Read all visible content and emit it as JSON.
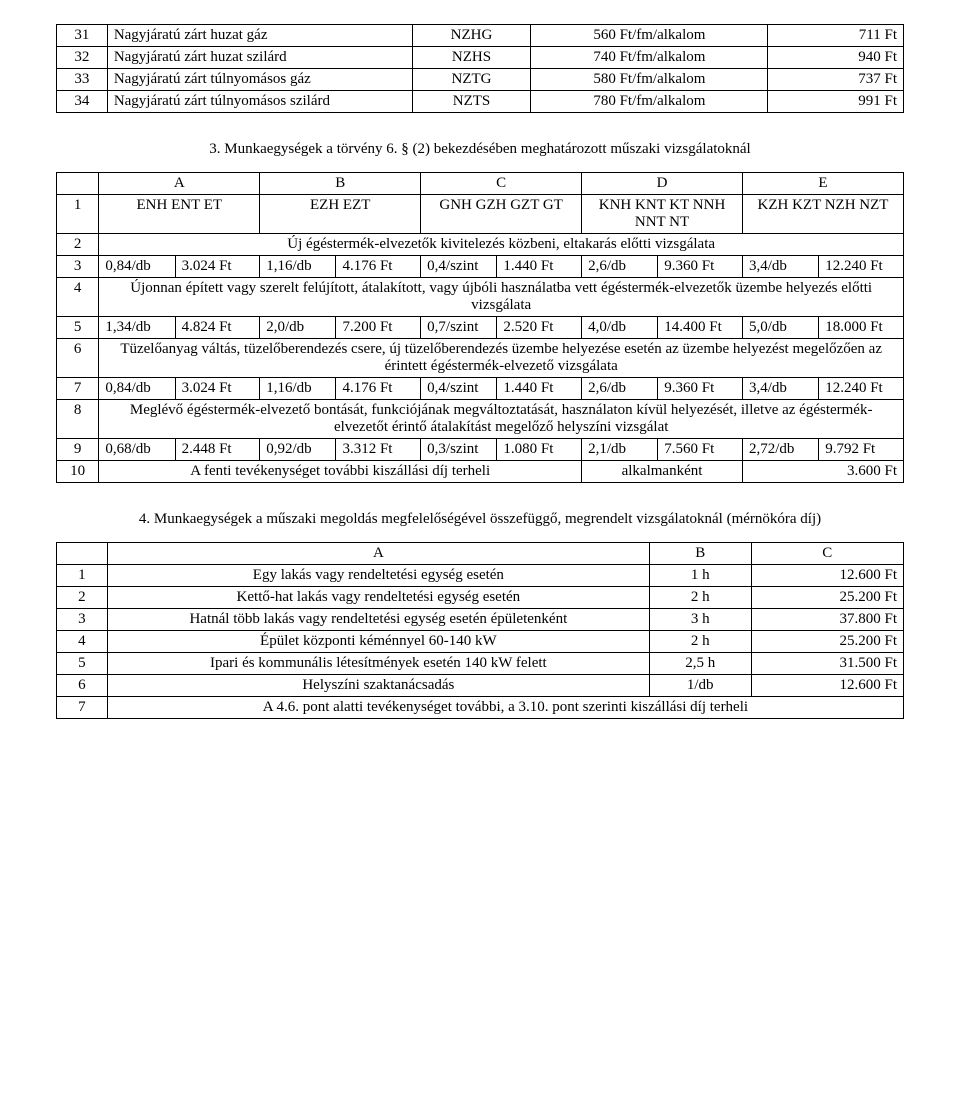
{
  "table1": {
    "cols": [
      "31",
      "32",
      "33",
      "34"
    ],
    "rows": [
      {
        "n": "31",
        "name": "Nagyjáratú zárt huzat gáz",
        "code": "NZHG",
        "rate": "560 Ft/fm/alkalom",
        "price": "711 Ft"
      },
      {
        "n": "32",
        "name": "Nagyjáratú zárt huzat szilárd",
        "code": "NZHS",
        "rate": "740 Ft/fm/alkalom",
        "price": "940 Ft"
      },
      {
        "n": "33",
        "name": "Nagyjáratú zárt túlnyomásos gáz",
        "code": "NZTG",
        "rate": "580 Ft/fm/alkalom",
        "price": "737 Ft"
      },
      {
        "n": "34",
        "name": "Nagyjáratú zárt túlnyomásos szilárd",
        "code": "NZTS",
        "rate": "780 Ft/fm/alkalom",
        "price": "991 Ft"
      }
    ]
  },
  "section3_title": "3. Munkaegységek a törvény 6. § (2) bekezdésében meghatározott műszaki vizsgálatoknál",
  "table2": {
    "header": [
      "",
      "A",
      "B",
      "C",
      "D",
      "E"
    ],
    "row1": {
      "n": "1",
      "a": "ENH ENT ET",
      "b": "EZH EZT",
      "c": "GNH GZH GZT GT",
      "d": "KNH KNT KT NNH NNT NT",
      "e": "KZH KZT NZH NZT"
    },
    "row2": {
      "n": "2",
      "text": "Új égéstermék-elvezetők kivitelezés közbeni, eltakarás előtti vizsgálata"
    },
    "row3": {
      "n": "3",
      "a1": "0,84/db",
      "a2": "3.024 Ft",
      "b1": "1,16/db",
      "b2": "4.176 Ft",
      "c1": "0,4/szint",
      "c2": "1.440 Ft",
      "d1": "2,6/db",
      "d2": "9.360 Ft",
      "e1": "3,4/db",
      "e2": "12.240 Ft"
    },
    "row4": {
      "n": "4",
      "text": "Újonnan épített vagy szerelt felújított, átalakított, vagy újbóli használatba vett égéstermék-elvezetők üzembe helyezés előtti vizsgálata"
    },
    "row5": {
      "n": "5",
      "a1": "1,34/db",
      "a2": "4.824 Ft",
      "b1": "2,0/db",
      "b2": "7.200 Ft",
      "c1": "0,7/szint",
      "c2": "2.520 Ft",
      "d1": "4,0/db",
      "d2": "14.400 Ft",
      "e1": "5,0/db",
      "e2": "18.000 Ft"
    },
    "row6": {
      "n": "6",
      "text": "Tüzelőanyag váltás, tüzelőberendezés csere, új tüzelőberendezés üzembe helyezése esetén az üzembe helyezést megelőzően az érintett égéstermék-elvezető vizsgálata"
    },
    "row7": {
      "n": "7",
      "a1": "0,84/db",
      "a2": "3.024 Ft",
      "b1": "1,16/db",
      "b2": "4.176 Ft",
      "c1": "0,4/szint",
      "c2": "1.440 Ft",
      "d1": "2,6/db",
      "d2": "9.360 Ft",
      "e1": "3,4/db",
      "e2": "12.240 Ft"
    },
    "row8": {
      "n": "8",
      "text": "Meglévő égéstermék-elvezető bontását, funkciójának megváltoztatását, használaton kívül helyezését, illetve az égéstermék-elvezetőt érintő átalakítást megelőző helyszíni vizsgálat"
    },
    "row9": {
      "n": "9",
      "a1": "0,68/db",
      "a2": "2.448 Ft",
      "b1": "0,92/db",
      "b2": "3.312 Ft",
      "c1": "0,3/szint",
      "c2": "1.080 Ft",
      "d1": "2,1/db",
      "d2": "7.560 Ft",
      "e1": "2,72/db",
      "e2": "9.792 Ft"
    },
    "row10": {
      "n": "10",
      "text": "A fenti tevékenységet további kiszállási díj terheli",
      "d": "alkalmanként",
      "e": "3.600 Ft"
    }
  },
  "section4_title": "4. Munkaegységek a műszaki megoldás megfelelőségével összefüggő, megrendelt vizsgálatoknál (mérnökóra díj)",
  "table3": {
    "header": [
      "",
      "A",
      "B",
      "C"
    ],
    "rows": [
      {
        "n": "1",
        "a": "Egy lakás vagy rendeltetési egység esetén",
        "b": "1 h",
        "c": "12.600 Ft"
      },
      {
        "n": "2",
        "a": "Kettő-hat lakás vagy rendeltetési egység esetén",
        "b": "2 h",
        "c": "25.200 Ft"
      },
      {
        "n": "3",
        "a": "Hatnál több lakás vagy rendeltetési egység esetén épületenként",
        "b": "3 h",
        "c": "37.800 Ft"
      },
      {
        "n": "4",
        "a": "Épület központi kéménnyel 60-140 kW",
        "b": "2 h",
        "c": "25.200 Ft"
      },
      {
        "n": "5",
        "a": "Ipari és kommunális létesítmények esetén 140 kW felett",
        "b": "2,5 h",
        "c": "31.500 Ft"
      },
      {
        "n": "6",
        "a": "Helyszíni szaktanácsadás",
        "b": "1/db",
        "c": "12.600 Ft"
      }
    ],
    "row7": {
      "n": "7",
      "a": "A 4.6. pont alatti tevékenységet további, a 3.10. pont szerinti kiszállási díj terheli"
    }
  }
}
